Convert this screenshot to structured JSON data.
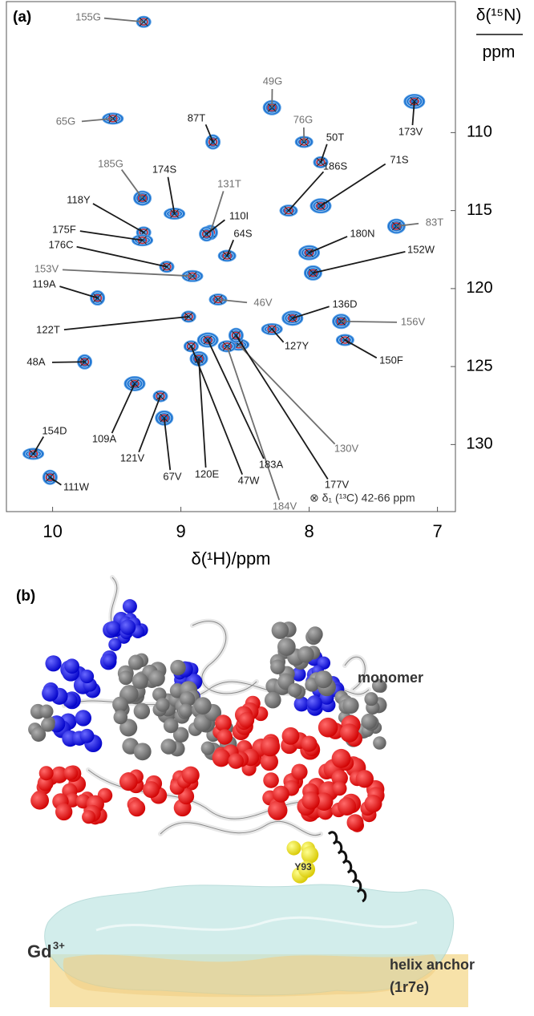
{
  "chart_data": {
    "type": "scatter",
    "panel_label": "(a)",
    "x_label": "δ(¹H)/ppm",
    "y_label": "δ(¹⁵N)",
    "y_label_unit": "ppm",
    "legend": "⊗ δ₁ (¹³C) 42-66 ppm",
    "xlim": [
      10.36,
      6.86
    ],
    "xticks": [
      10,
      9,
      8,
      7
    ],
    "ylim": [
      101.6,
      134.3
    ],
    "yticks": [
      110,
      115,
      120,
      125,
      130
    ],
    "peak_color": "#1f74d0",
    "cross_peak_color": "#e0282a",
    "points": [
      {
        "label": "155G",
        "x": 9.29,
        "y": 102.9,
        "label_color": "#707070"
      },
      {
        "label": "49G",
        "x": 8.29,
        "y": 108.4,
        "label_color": "#707070"
      },
      {
        "label": "65G",
        "x": 9.53,
        "y": 109.1,
        "label_color": "#707070"
      },
      {
        "label": "87T",
        "x": 8.75,
        "y": 110.6,
        "label_color": "#1a1a1a"
      },
      {
        "label": "76G",
        "x": 8.04,
        "y": 110.6,
        "label_color": "#707070"
      },
      {
        "label": "173V",
        "x": 7.18,
        "y": 108.0,
        "label_color": "#1a1a1a"
      },
      {
        "label": "50T",
        "x": 7.91,
        "y": 111.9,
        "label_color": "#1a1a1a"
      },
      {
        "label": "185G",
        "x": 9.3,
        "y": 114.2,
        "label_color": "#707070"
      },
      {
        "label": "174S",
        "x": 9.05,
        "y": 115.2,
        "label_color": "#1a1a1a"
      },
      {
        "label": "131T",
        "x": 8.77,
        "y": 116.4,
        "label_color": "#707070"
      },
      {
        "label": "186S",
        "x": 8.16,
        "y": 115.0,
        "label_color": "#1a1a1a"
      },
      {
        "label": "71S",
        "x": 7.91,
        "y": 114.7,
        "label_color": "#1a1a1a"
      },
      {
        "label": "118Y",
        "x": 9.29,
        "y": 116.4,
        "label_color": "#1a1a1a"
      },
      {
        "label": "83T",
        "x": 7.32,
        "y": 116.0,
        "label_color": "#707070"
      },
      {
        "label": "175F",
        "x": 9.3,
        "y": 116.9,
        "label_color": "#1a1a1a"
      },
      {
        "label": "110I",
        "x": 8.8,
        "y": 116.5,
        "label_color": "#1a1a1a"
      },
      {
        "label": "64S",
        "x": 8.64,
        "y": 117.9,
        "label_color": "#1a1a1a"
      },
      {
        "label": "180N",
        "x": 8.0,
        "y": 117.7,
        "label_color": "#1a1a1a"
      },
      {
        "label": "176C",
        "x": 9.11,
        "y": 118.6,
        "label_color": "#1a1a1a"
      },
      {
        "label": "152W",
        "x": 7.97,
        "y": 119.0,
        "label_color": "#1a1a1a"
      },
      {
        "label": "153V",
        "x": 8.91,
        "y": 119.2,
        "label_color": "#707070"
      },
      {
        "label": "119A",
        "x": 9.65,
        "y": 120.6,
        "label_color": "#1a1a1a"
      },
      {
        "label": "46V",
        "x": 8.71,
        "y": 120.7,
        "label_color": "#707070"
      },
      {
        "label": "136D",
        "x": 8.13,
        "y": 121.9,
        "label_color": "#1a1a1a"
      },
      {
        "label": "122T",
        "x": 8.94,
        "y": 121.8,
        "label_color": "#1a1a1a"
      },
      {
        "label": "156V",
        "x": 7.75,
        "y": 122.1,
        "label_color": "#707070"
      },
      {
        "label": "127Y",
        "x": 8.29,
        "y": 122.6,
        "label_color": "#1a1a1a"
      },
      {
        "label": "48A",
        "x": 9.75,
        "y": 124.7,
        "label_color": "#1a1a1a"
      },
      {
        "label": "150F",
        "x": 7.72,
        "y": 123.3,
        "label_color": "#1a1a1a"
      },
      {
        "label": "109A",
        "x": 9.36,
        "y": 126.1,
        "label_color": "#1a1a1a"
      },
      {
        "label": "121V",
        "x": 9.16,
        "y": 126.9,
        "label_color": "#1a1a1a"
      },
      {
        "label": "67V",
        "x": 9.13,
        "y": 128.3,
        "label_color": "#1a1a1a"
      },
      {
        "label": "130V",
        "x": 8.55,
        "y": 123.6,
        "label_color": "#707070"
      },
      {
        "label": "177V",
        "x": 8.57,
        "y": 123.0,
        "label_color": "#1a1a1a"
      },
      {
        "label": "184V",
        "x": 8.64,
        "y": 123.7,
        "label_color": "#707070"
      },
      {
        "label": "183A",
        "x": 8.79,
        "y": 123.3,
        "label_color": "#1a1a1a"
      },
      {
        "label": "47W",
        "x": 8.92,
        "y": 123.7,
        "label_color": "#1a1a1a"
      },
      {
        "label": "120E",
        "x": 8.86,
        "y": 124.5,
        "label_color": "#1a1a1a"
      },
      {
        "label": "154D",
        "x": 10.15,
        "y": 130.6,
        "label_color": "#1a1a1a"
      },
      {
        "label": "111W",
        "x": 10.02,
        "y": 132.1,
        "label_color": "#1a1a1a"
      }
    ]
  },
  "panel_b": {
    "panel_label": "(b)",
    "monomer": "monomer",
    "residue": "Y93",
    "ion": "Gd",
    "ion_charge": "3+",
    "anchor": "helix anchor",
    "anchor_pdb": "(1r7e)"
  }
}
